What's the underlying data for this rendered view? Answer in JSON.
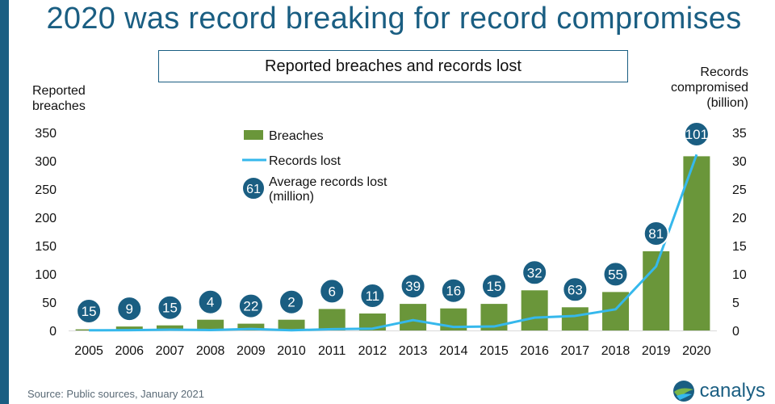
{
  "title": "2020 was record breaking for record compromises",
  "subtitle": "Reported breaches and records lost",
  "left_axis_title": [
    "Reported",
    "breaches"
  ],
  "right_axis_title": [
    "Records",
    "compromised",
    "(billion)"
  ],
  "source": "Source: Public sources, January 2021",
  "logo_text": "canalys",
  "colors": {
    "bars": "#6a963a",
    "line": "#35b8ec",
    "badge": "#1a5e82",
    "title": "#1a5e82"
  },
  "chart_data": {
    "type": "bar",
    "categories": [
      "2005",
      "2006",
      "2007",
      "2008",
      "2009",
      "2010",
      "2011",
      "2012",
      "2013",
      "2014",
      "2015",
      "2016",
      "2017",
      "2018",
      "2019",
      "2020"
    ],
    "series": [
      {
        "name": "Breaches",
        "type": "bar",
        "axis": "left",
        "values": [
          2,
          7,
          9,
          19,
          12,
          19,
          38,
          30,
          47,
          39,
          47,
          71,
          41,
          68,
          140,
          308
        ]
      },
      {
        "name": "Records lost",
        "type": "line",
        "axis": "right",
        "values": [
          0.03,
          0.06,
          0.14,
          0.08,
          0.26,
          0.04,
          0.23,
          0.33,
          1.83,
          0.62,
          0.71,
          2.27,
          2.58,
          3.74,
          11.34,
          31.1
        ]
      },
      {
        "name": "Average records lost (million)",
        "type": "label",
        "values": [
          15,
          9,
          15,
          4,
          22,
          2,
          6,
          11,
          39,
          16,
          15,
          32,
          63,
          55,
          81,
          101
        ]
      }
    ],
    "y_left": {
      "min": 0,
      "max": 350,
      "ticks": [
        "0",
        "50",
        "100",
        "150",
        "200",
        "250",
        "300",
        "350"
      ]
    },
    "y_right": {
      "min": 0,
      "max": 35,
      "ticks": [
        "0",
        "5",
        "10",
        "15",
        "20",
        "25",
        "30",
        "35"
      ]
    },
    "legend": {
      "position": "top-left",
      "entries": [
        {
          "kind": "bar",
          "label": [
            "Breaches"
          ]
        },
        {
          "kind": "line",
          "label": [
            "Records lost"
          ]
        },
        {
          "kind": "badge",
          "badge_text": "61",
          "label": [
            "Average records lost",
            "(million)"
          ]
        }
      ]
    },
    "grid": false
  }
}
